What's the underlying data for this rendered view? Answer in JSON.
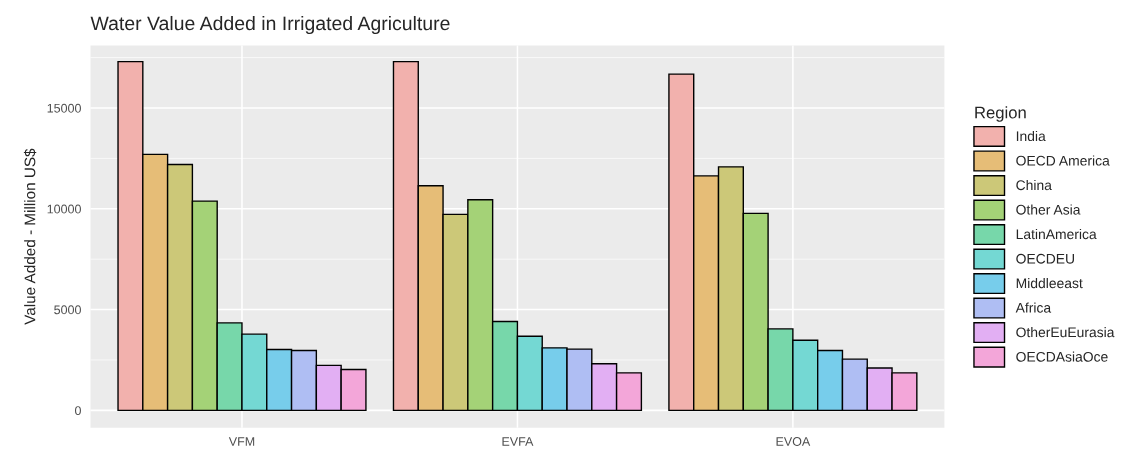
{
  "chart_data": {
    "type": "bar",
    "title": "Water Value Added in Irrigated Agriculture",
    "ylabel": "Value Added - Million US$",
    "legend_title": "Region",
    "categories": [
      "VFM",
      "EVFA",
      "EVOA"
    ],
    "series": [
      {
        "name": "India",
        "color": "#f2b1ad",
        "values": [
          17300,
          17300,
          16680
        ]
      },
      {
        "name": "OECD America",
        "color": "#e6bd77",
        "values": [
          12700,
          11140,
          11630
        ]
      },
      {
        "name": "China",
        "color": "#ccc878",
        "values": [
          12200,
          9720,
          12080
        ]
      },
      {
        "name": "Other Asia",
        "color": "#a4d277",
        "values": [
          10380,
          10450,
          9770
        ]
      },
      {
        "name": "LatinAmerica",
        "color": "#77d7aa",
        "values": [
          4340,
          4410,
          4040
        ]
      },
      {
        "name": "OECDEU",
        "color": "#74d8d3",
        "values": [
          3780,
          3680,
          3480
        ]
      },
      {
        "name": "Middleeast",
        "color": "#77cdeb",
        "values": [
          3020,
          3100,
          2970
        ]
      },
      {
        "name": "Africa",
        "color": "#afbef3",
        "values": [
          2970,
          3040,
          2540
        ]
      },
      {
        "name": "OtherEuEurasia",
        "color": "#e2aff3",
        "values": [
          2230,
          2310,
          2100
        ]
      },
      {
        "name": "OECDAsiaOce",
        "color": "#f3a6d9",
        "values": [
          2030,
          1860,
          1860
        ]
      }
    ],
    "ylim": [
      -860,
      18100
    ],
    "yticks": [
      0,
      {
        "value": 2500,
        "label": null
      },
      5000,
      {
        "value": 7500,
        "label": null
      },
      10000,
      {
        "value": 12500,
        "label": null
      },
      15000,
      {
        "value": 17500,
        "label": null
      }
    ],
    "grid": true,
    "legend": "right"
  }
}
